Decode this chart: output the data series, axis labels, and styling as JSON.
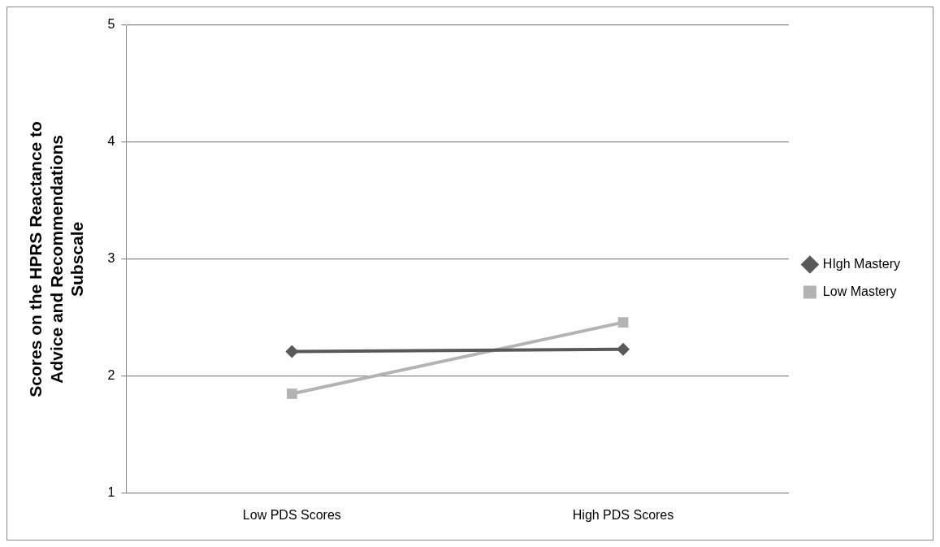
{
  "chart_data": {
    "type": "line",
    "ylabel": "Scores on the HPRS Reactance to Advice and Recommendations Subscale",
    "categories": [
      "Low PDS Scores",
      "High PDS Scores"
    ],
    "series": [
      {
        "name": "HIgh Mastery",
        "color": "#595959",
        "values": [
          2.21,
          2.23
        ],
        "marker": "diamond"
      },
      {
        "name": "Low Mastery",
        "color": "#b3b3b3",
        "values": [
          1.85,
          2.46
        ],
        "marker": "square"
      }
    ],
    "ylim": [
      1,
      5
    ],
    "yticks": [
      1,
      2,
      3,
      4,
      5
    ],
    "grid": "y",
    "legend": "right",
    "line_style": "solid"
  }
}
